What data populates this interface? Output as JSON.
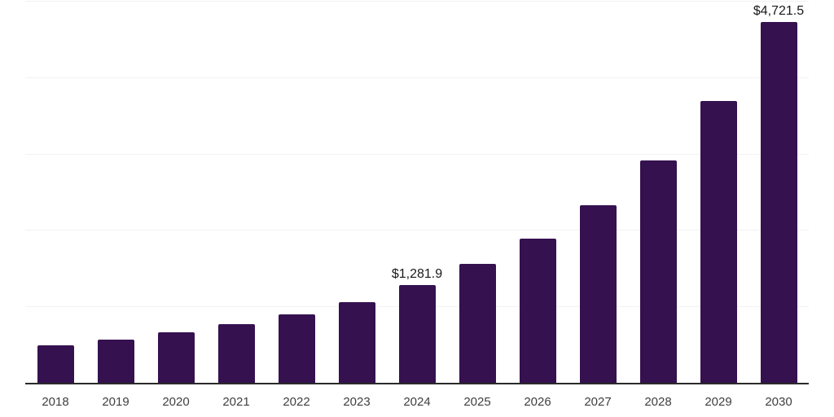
{
  "page": {
    "background": "#ffffff"
  },
  "chart_data": {
    "type": "bar",
    "title": "",
    "xlabel": "",
    "ylabel": "",
    "categories": [
      "2018",
      "2019",
      "2020",
      "2021",
      "2022",
      "2023",
      "2024",
      "2025",
      "2026",
      "2027",
      "2028",
      "2029",
      "2030"
    ],
    "values": [
      495,
      560,
      660,
      765,
      895,
      1060,
      1281.9,
      1560,
      1890,
      2320,
      2910,
      3690,
      4721.5
    ],
    "value_labels": [
      "",
      "",
      "",
      "",
      "",
      "",
      "$1,281.9",
      "",
      "",
      "",
      "",
      "",
      "$4,721.5"
    ],
    "ylim": [
      0,
      5000
    ],
    "gridline_step": 1000,
    "grid": true,
    "legend": false,
    "colors": {
      "bar": "#351150",
      "axis_line": "#2b2b2b",
      "gridline": "#f2f2f2",
      "tick_label": "#404040",
      "value_label": "#1a1a1a"
    }
  }
}
